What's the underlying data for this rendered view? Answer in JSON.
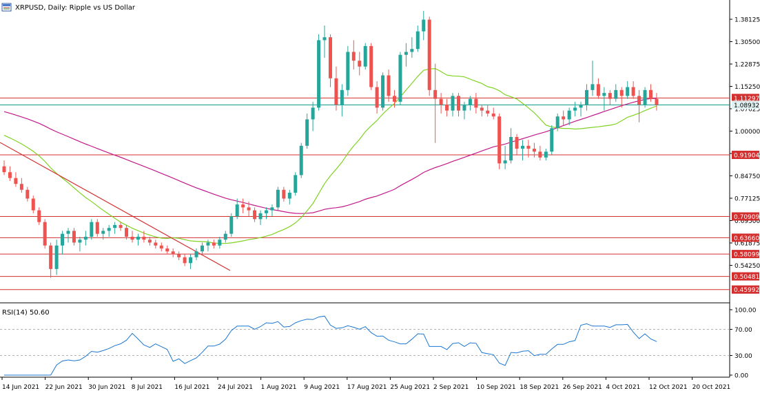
{
  "window": {
    "title": "XRPUSD, Daily:  Ripple vs US Dollar",
    "icon": "chart-window-icon"
  },
  "rsi_panel": {
    "title": "RSI(14) 50.60",
    "levels": [
      "100.00",
      "70.00",
      "30.00",
      "0.00"
    ]
  },
  "colors": {
    "bull": "#26a69a",
    "bear": "#ef5350",
    "ma_fast": "#7ed321",
    "ma_slow": "#c2188b",
    "hline": "#d32f2f",
    "current": "#009688",
    "rsi": "#1976d2"
  },
  "chart_data": {
    "type": "candlestick",
    "symbol": "XRPUSD",
    "timeframe": "Daily",
    "y_axis": {
      "ticks": [
        "1.38125",
        "1.30500",
        "1.22875",
        "1.15250",
        "1.07625",
        "1.00000",
        "0.92375",
        "0.84750",
        "0.77125",
        "0.69500",
        "0.61875",
        "0.54250"
      ],
      "range": [
        0.42,
        1.43
      ]
    },
    "x_axis": {
      "ticks": [
        "14 Jun 2021",
        "22 Jun 2021",
        "30 Jun 2021",
        "8 Jul 2021",
        "16 Jul 2021",
        "24 Jul 2021",
        "1 Aug 2021",
        "9 Aug 2021",
        "17 Aug 2021",
        "25 Aug 2021",
        "2 Sep 2021",
        "10 Sep 2021",
        "18 Sep 2021",
        "26 Sep 2021",
        "4 Oct 2021",
        "12 Oct 2021",
        "20 Oct 2021"
      ]
    },
    "horizontal_levels": [
      "1.11297",
      "0.91904",
      "0.70909",
      "0.63660",
      "0.58099",
      "0.50481",
      "0.45992"
    ],
    "current_price": "1.08932",
    "candles": [
      [
        0.88,
        0.9,
        0.85,
        0.86
      ],
      [
        0.86,
        0.88,
        0.83,
        0.84
      ],
      [
        0.84,
        0.86,
        0.81,
        0.82
      ],
      [
        0.82,
        0.84,
        0.79,
        0.8
      ],
      [
        0.8,
        0.81,
        0.76,
        0.77
      ],
      [
        0.77,
        0.78,
        0.72,
        0.73
      ],
      [
        0.73,
        0.74,
        0.68,
        0.69
      ],
      [
        0.69,
        0.7,
        0.6,
        0.61
      ],
      [
        0.61,
        0.62,
        0.5,
        0.53
      ],
      [
        0.53,
        0.63,
        0.51,
        0.61
      ],
      [
        0.61,
        0.66,
        0.58,
        0.65
      ],
      [
        0.65,
        0.67,
        0.62,
        0.66
      ],
      [
        0.66,
        0.67,
        0.61,
        0.62
      ],
      [
        0.62,
        0.64,
        0.59,
        0.63
      ],
      [
        0.63,
        0.66,
        0.61,
        0.64
      ],
      [
        0.64,
        0.7,
        0.63,
        0.69
      ],
      [
        0.69,
        0.7,
        0.64,
        0.65
      ],
      [
        0.65,
        0.67,
        0.63,
        0.66
      ],
      [
        0.66,
        0.68,
        0.64,
        0.67
      ],
      [
        0.67,
        0.69,
        0.65,
        0.68
      ],
      [
        0.68,
        0.69,
        0.66,
        0.67
      ],
      [
        0.67,
        0.68,
        0.63,
        0.64
      ],
      [
        0.64,
        0.66,
        0.62,
        0.63
      ],
      [
        0.63,
        0.65,
        0.61,
        0.64
      ],
      [
        0.64,
        0.66,
        0.62,
        0.63
      ],
      [
        0.63,
        0.64,
        0.61,
        0.62
      ],
      [
        0.62,
        0.63,
        0.6,
        0.61
      ],
      [
        0.61,
        0.62,
        0.59,
        0.6
      ],
      [
        0.6,
        0.61,
        0.58,
        0.59
      ],
      [
        0.59,
        0.6,
        0.57,
        0.58
      ],
      [
        0.58,
        0.59,
        0.56,
        0.57
      ],
      [
        0.57,
        0.58,
        0.54,
        0.55
      ],
      [
        0.55,
        0.58,
        0.53,
        0.57
      ],
      [
        0.57,
        0.6,
        0.56,
        0.59
      ],
      [
        0.59,
        0.62,
        0.58,
        0.61
      ],
      [
        0.61,
        0.63,
        0.59,
        0.62
      ],
      [
        0.62,
        0.63,
        0.6,
        0.61
      ],
      [
        0.61,
        0.64,
        0.6,
        0.63
      ],
      [
        0.63,
        0.66,
        0.62,
        0.65
      ],
      [
        0.65,
        0.72,
        0.64,
        0.71
      ],
      [
        0.71,
        0.77,
        0.7,
        0.75
      ],
      [
        0.75,
        0.77,
        0.72,
        0.74
      ],
      [
        0.74,
        0.76,
        0.71,
        0.73
      ],
      [
        0.73,
        0.74,
        0.69,
        0.7
      ],
      [
        0.7,
        0.73,
        0.68,
        0.72
      ],
      [
        0.72,
        0.74,
        0.7,
        0.73
      ],
      [
        0.73,
        0.75,
        0.71,
        0.74
      ],
      [
        0.74,
        0.81,
        0.73,
        0.8
      ],
      [
        0.8,
        0.81,
        0.76,
        0.77
      ],
      [
        0.77,
        0.8,
        0.75,
        0.79
      ],
      [
        0.79,
        0.86,
        0.78,
        0.85
      ],
      [
        0.85,
        0.96,
        0.84,
        0.95
      ],
      [
        0.95,
        1.06,
        0.94,
        1.04
      ],
      [
        1.04,
        1.1,
        1.0,
        1.08
      ],
      [
        1.08,
        1.33,
        1.07,
        1.31
      ],
      [
        1.31,
        1.36,
        1.25,
        1.32
      ],
      [
        1.32,
        1.33,
        1.15,
        1.18
      ],
      [
        1.18,
        1.22,
        1.07,
        1.09
      ],
      [
        1.09,
        1.16,
        1.05,
        1.14
      ],
      [
        1.14,
        1.29,
        1.12,
        1.27
      ],
      [
        1.27,
        1.31,
        1.21,
        1.24
      ],
      [
        1.24,
        1.27,
        1.19,
        1.22
      ],
      [
        1.22,
        1.3,
        1.21,
        1.29
      ],
      [
        1.29,
        1.3,
        1.14,
        1.15
      ],
      [
        1.15,
        1.17,
        1.06,
        1.08
      ],
      [
        1.08,
        1.2,
        1.07,
        1.19
      ],
      [
        1.19,
        1.21,
        1.1,
        1.12
      ],
      [
        1.12,
        1.14,
        1.08,
        1.1
      ],
      [
        1.1,
        1.27,
        1.09,
        1.26
      ],
      [
        1.26,
        1.3,
        1.22,
        1.27
      ],
      [
        1.27,
        1.32,
        1.25,
        1.28
      ],
      [
        1.28,
        1.36,
        1.27,
        1.34
      ],
      [
        1.34,
        1.41,
        1.31,
        1.38
      ],
      [
        1.38,
        1.39,
        1.12,
        1.14
      ],
      [
        1.14,
        1.23,
        0.96,
        1.11
      ],
      [
        1.11,
        1.13,
        1.06,
        1.09
      ],
      [
        1.09,
        1.11,
        1.05,
        1.07
      ],
      [
        1.07,
        1.13,
        1.05,
        1.12
      ],
      [
        1.12,
        1.13,
        1.05,
        1.07
      ],
      [
        1.07,
        1.1,
        1.04,
        1.09
      ],
      [
        1.09,
        1.12,
        1.07,
        1.11
      ],
      [
        1.11,
        1.13,
        1.06,
        1.08
      ],
      [
        1.08,
        1.09,
        1.05,
        1.07
      ],
      [
        1.07,
        1.09,
        1.05,
        1.06
      ],
      [
        1.06,
        1.08,
        1.04,
        1.05
      ],
      [
        1.05,
        1.06,
        0.87,
        0.89
      ],
      [
        0.89,
        0.95,
        0.87,
        0.9
      ],
      [
        0.9,
        1.01,
        0.89,
        0.98
      ],
      [
        0.98,
        0.99,
        0.92,
        0.94
      ],
      [
        0.94,
        0.97,
        0.9,
        0.95
      ],
      [
        0.95,
        0.97,
        0.91,
        0.94
      ],
      [
        0.94,
        0.96,
        0.91,
        0.93
      ],
      [
        0.93,
        0.95,
        0.9,
        0.91
      ],
      [
        0.91,
        0.94,
        0.9,
        0.93
      ],
      [
        0.93,
        1.02,
        0.92,
        1.01
      ],
      [
        1.01,
        1.06,
        1.0,
        1.05
      ],
      [
        1.05,
        1.07,
        1.02,
        1.04
      ],
      [
        1.04,
        1.08,
        1.02,
        1.07
      ],
      [
        1.07,
        1.1,
        1.05,
        1.08
      ],
      [
        1.08,
        1.1,
        1.05,
        1.09
      ],
      [
        1.09,
        1.16,
        1.07,
        1.14
      ],
      [
        1.14,
        1.24,
        1.12,
        1.16
      ],
      [
        1.16,
        1.18,
        1.11,
        1.12
      ],
      [
        1.12,
        1.15,
        1.07,
        1.13
      ],
      [
        1.13,
        1.14,
        1.09,
        1.11
      ],
      [
        1.11,
        1.16,
        1.1,
        1.14
      ],
      [
        1.14,
        1.15,
        1.08,
        1.12
      ],
      [
        1.12,
        1.17,
        1.11,
        1.15
      ],
      [
        1.15,
        1.17,
        1.11,
        1.12
      ],
      [
        1.12,
        1.14,
        1.03,
        1.09
      ],
      [
        1.09,
        1.15,
        1.08,
        1.14
      ],
      [
        1.14,
        1.16,
        1.1,
        1.11
      ],
      [
        1.11,
        1.13,
        1.07,
        1.09
      ]
    ]
  }
}
